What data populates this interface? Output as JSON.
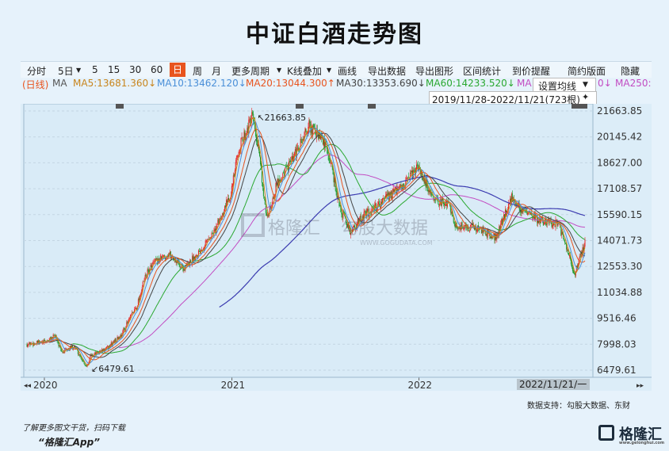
{
  "title": "中证白酒走势图",
  "toolbar": {
    "items": [
      "分时",
      "5日",
      "5",
      "15",
      "30",
      "60",
      "日",
      "周",
      "月",
      "更多周期",
      "K线叠加",
      "画线",
      "导出数据",
      "导出图形",
      "区间统计",
      "到价提醒",
      "简约版面",
      "隐藏"
    ],
    "active": "日",
    "dropdown_items": [
      "5日",
      "更多周期",
      "K线叠加"
    ]
  },
  "ma_legend": [
    {
      "label": "(日线)",
      "color": "#e8541e"
    },
    {
      "label": "MA",
      "color": "#555555"
    },
    {
      "label": "MA5:13681.360↓",
      "color": "#c8851d"
    },
    {
      "label": "MA10:13462.120↓",
      "color": "#4a8fd8"
    },
    {
      "label": "MA20:13044.300↑",
      "color": "#e8541e"
    },
    {
      "label": "MA30:13353.690↓",
      "color": "#444444"
    },
    {
      "label": "MA60:14233.520↓",
      "color": "#2aa830"
    },
    {
      "label": "MA",
      "color": "#c24cc2"
    },
    {
      "label": "0↓",
      "color": "#c24cc2"
    },
    {
      "label": "MA250:",
      "color": "#c24cc2"
    }
  ],
  "popup": {
    "label": "设置均线",
    "pin": "▼"
  },
  "range": {
    "text": "2019/11/28-2022/11/21(723根)",
    "pin": "📌"
  },
  "watermark": {
    "brand": "格隆汇",
    "site": "www.gelonghui.com",
    "data_brand": "勾股大数据",
    "data_site": "WWW.GOGUDATA.COM"
  },
  "footer": {
    "promo": "了解更多图文干货，扫码下载",
    "app": "“格隆汇App”",
    "source": "数据支持：勾股大数据、东财",
    "brand": "格隆汇",
    "brand_url": "www.gelonghui.com"
  },
  "chart_data": {
    "type": "candlestick",
    "x_tick_labels": [
      "2020",
      "2021",
      "2022"
    ],
    "y_tick_labels": [
      "21663.85",
      "20145.42",
      "18627.00",
      "17108.57",
      "15590.15",
      "14071.73",
      "12553.30",
      "11034.88",
      "9516.46",
      "7998.03",
      "6479.61"
    ],
    "ylim": [
      6479.61,
      21663.85
    ],
    "annotations": [
      {
        "label": "21663.85",
        "x": "2021-02-10",
        "y": 21663.85
      },
      {
        "label": "6479.61",
        "x": "2020-03-23",
        "y": 6479.61
      }
    ],
    "cursor_label": "2022/11/21/一",
    "grid": "horizontal",
    "close_series": {
      "dates": [
        "2019-11-28",
        "2019-12-31",
        "2020-01-23",
        "2020-02-03",
        "2020-02-28",
        "2020-03-23",
        "2020-03-31",
        "2020-04-30",
        "2020-05-29",
        "2020-06-30",
        "2020-07-15",
        "2020-07-31",
        "2020-08-31",
        "2020-09-30",
        "2020-10-30",
        "2020-11-30",
        "2020-12-31",
        "2021-01-15",
        "2021-02-10",
        "2021-02-26",
        "2021-03-09",
        "2021-03-31",
        "2021-04-30",
        "2021-05-31",
        "2021-06-30",
        "2021-07-15",
        "2021-07-30",
        "2021-08-20",
        "2021-09-15",
        "2021-09-30",
        "2021-10-29",
        "2021-11-30",
        "2021-12-31",
        "2022-01-31",
        "2022-02-28",
        "2022-03-15",
        "2022-03-31",
        "2022-04-27",
        "2022-05-31",
        "2022-06-30",
        "2022-07-29",
        "2022-08-31",
        "2022-09-30",
        "2022-10-31",
        "2022-11-21"
      ],
      "values": [
        8000,
        8100,
        8500,
        7500,
        7900,
        6700,
        7300,
        7700,
        8500,
        10300,
        11900,
        12700,
        13300,
        12400,
        13500,
        14700,
        17000,
        19500,
        21300,
        18500,
        15200,
        17500,
        18800,
        20800,
        19800,
        18400,
        16000,
        14600,
        15500,
        15800,
        16600,
        17200,
        18400,
        16300,
        16300,
        14800,
        14900,
        14800,
        14200,
        16600,
        15600,
        15200,
        15100,
        12100,
        13900
      ]
    },
    "moving_averages": [
      {
        "name": "MA5",
        "color": "#c8851d"
      },
      {
        "name": "MA10",
        "color": "#4a8fd8"
      },
      {
        "name": "MA20",
        "color": "#e8541e"
      },
      {
        "name": "MA30",
        "color": "#444444"
      },
      {
        "name": "MA60",
        "color": "#2aa830"
      },
      {
        "name": "MA250",
        "color": "#3b3bb0"
      },
      {
        "name": "MA",
        "color": "#c24cc2"
      }
    ],
    "up_color": "#e8201e",
    "down_color": "#1a9a2a"
  }
}
